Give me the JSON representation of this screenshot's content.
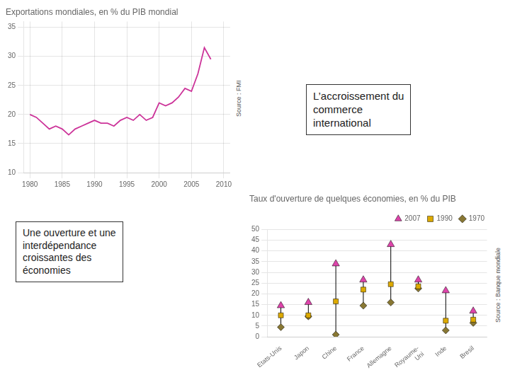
{
  "chart_data": [
    {
      "type": "line",
      "title": "Exportations mondiales, en % du PIB mondial",
      "x": [
        1980,
        1981,
        1982,
        1983,
        1984,
        1985,
        1986,
        1987,
        1988,
        1989,
        1990,
        1991,
        1992,
        1993,
        1994,
        1995,
        1996,
        1997,
        1998,
        1999,
        2000,
        2001,
        2002,
        2003,
        2004,
        2005,
        2006,
        2007,
        2008
      ],
      "values": [
        20.0,
        19.5,
        18.5,
        17.5,
        18.0,
        17.5,
        16.5,
        17.5,
        18.0,
        18.5,
        19.0,
        18.5,
        18.5,
        18.0,
        19.0,
        19.5,
        19.0,
        20.0,
        19.0,
        19.5,
        22.0,
        21.5,
        22.0,
        23.0,
        24.5,
        24.0,
        27.0,
        31.5,
        29.5
      ],
      "color": "#cc3399",
      "xlim": [
        1979,
        2011
      ],
      "xticks": [
        1980,
        1985,
        1990,
        1995,
        2000,
        2005,
        2010
      ],
      "ylim": [
        10,
        36
      ],
      "yticks": [
        10,
        15,
        20,
        25,
        30,
        35
      ],
      "grid": true,
      "annotations": [
        "Source : FMI",
        "L’accroissement du\ncommerce\ninternational"
      ]
    },
    {
      "type": "scatter",
      "title": "Taux d'ouverture de quelques économies, en % du PIB",
      "categories": [
        "Etats-Unis",
        "Japon",
        "Chine",
        "France",
        "Allemagne",
        "Royaume-\nUni",
        "Inde",
        "Bresil"
      ],
      "series": [
        {
          "name": "2007",
          "color": "#dd44aa",
          "marker": "triangle",
          "values": [
            14.5,
            16.0,
            34.0,
            26.5,
            43.0,
            26.5,
            21.5,
            12.0
          ]
        },
        {
          "name": "1990",
          "color": "#ddaa00",
          "marker": "square",
          "values": [
            10.0,
            10.0,
            16.5,
            22.0,
            24.5,
            23.5,
            7.5,
            8.0
          ]
        },
        {
          "name": "1970",
          "color": "#887733",
          "marker": "diamond",
          "values": [
            4.5,
            9.5,
            1.0,
            14.5,
            16.0,
            22.5,
            3.0,
            6.5
          ]
        }
      ],
      "ylim": [
        0,
        50
      ],
      "yticks": [
        0,
        5,
        10,
        15,
        20,
        25,
        30,
        35,
        40,
        45,
        50
      ],
      "grid": "y",
      "legend": "upper right",
      "annotations": [
        "Source : Banque mondiale",
        "Une ouverture et une\ninterdépendance\ncroissantes des\néconomies"
      ]
    }
  ]
}
